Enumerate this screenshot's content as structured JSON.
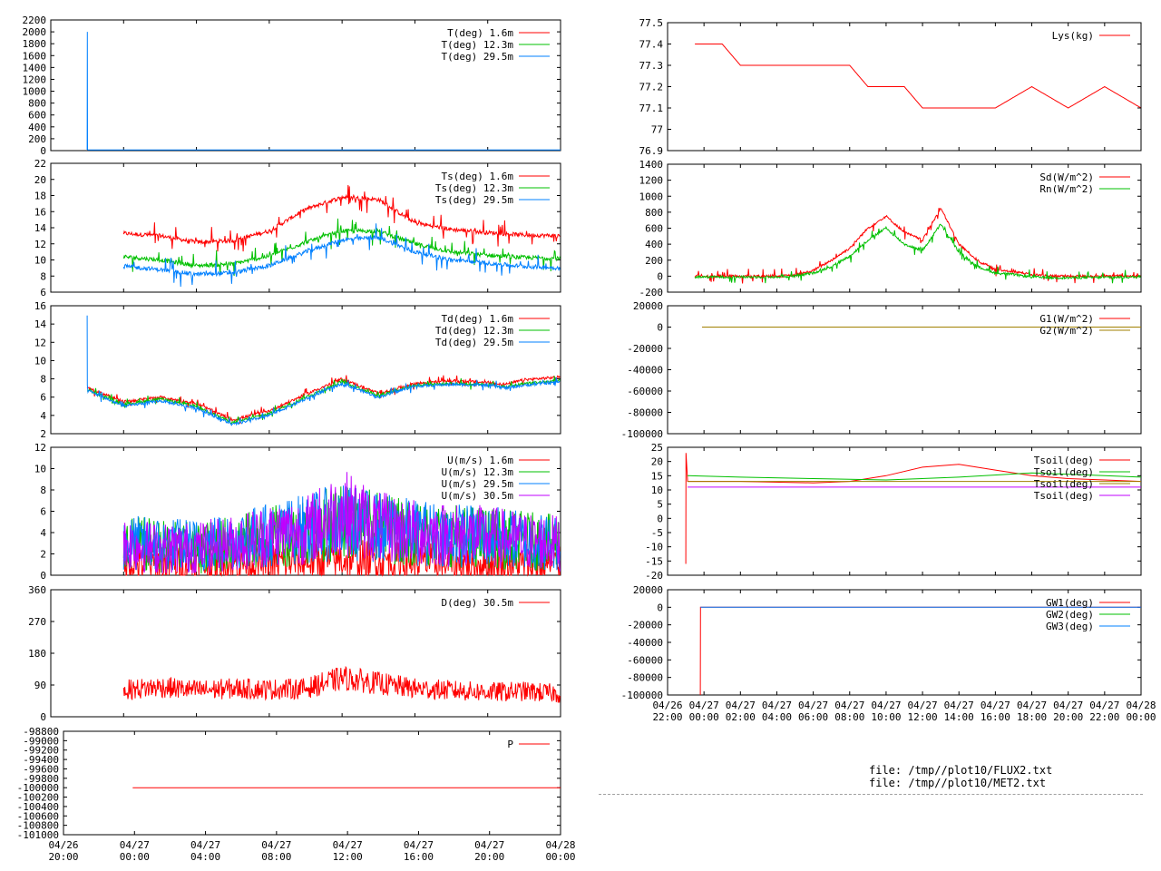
{
  "colors": {
    "red": "#ff0000",
    "green": "#00c000",
    "blue": "#0080ff",
    "purple": "#c000ff",
    "olive": "#a08000",
    "teal": "#00a0a0"
  },
  "files": [
    "file: /tmp//plot10/FLUX2.txt",
    "file: /tmp//plot10/MET2.txt"
  ],
  "left_time_ticks": {
    "dates": [
      "04/26",
      "04/27",
      "04/27",
      "04/27",
      "04/27",
      "04/27",
      "04/27",
      "04/28"
    ],
    "times": [
      "20:00",
      "00:00",
      "04:00",
      "08:00",
      "12:00",
      "16:00",
      "20:00",
      "00:00"
    ]
  },
  "right_time_ticks": {
    "dates": [
      "04/26",
      "04/27",
      "04/27",
      "04/27",
      "04/27",
      "04/27",
      "04/27",
      "04/27",
      "04/27",
      "04/27",
      "04/27",
      "04/27",
      "04/27",
      "04/28"
    ],
    "times": [
      "22:00",
      "00:00",
      "02:00",
      "04:00",
      "06:00",
      "08:00",
      "10:00",
      "12:00",
      "14:00",
      "16:00",
      "18:00",
      "20:00",
      "22:00",
      "00:00"
    ]
  },
  "chart_data": [
    {
      "id": "T",
      "type": "line",
      "col": "left",
      "xlim": [
        20,
        48
      ],
      "ylim": [
        0,
        2200
      ],
      "yticks": [
        "0",
        "200",
        "400",
        "600",
        "800",
        "1000",
        "1200",
        "1400",
        "1600",
        "1800",
        "2000",
        "2200"
      ],
      "legend": [
        "T(deg)  1.6m",
        "T(deg) 12.3m",
        "T(deg) 29.5m"
      ],
      "series": [
        {
          "name": "T(deg)  1.6m",
          "color": "red",
          "x": [],
          "y": []
        },
        {
          "name": "T(deg) 12.3m",
          "color": "green",
          "x": [],
          "y": []
        },
        {
          "name": "T(deg) 29.5m",
          "color": "blue",
          "x": [
            22.0,
            22.01,
            22.02,
            22.05,
            48
          ],
          "y": [
            15,
            2000,
            15,
            10,
            10
          ]
        }
      ]
    },
    {
      "id": "Ts",
      "type": "line",
      "col": "left",
      "xlim": [
        20,
        48
      ],
      "ylim": [
        6,
        22
      ],
      "yticks": [
        "6",
        "8",
        "10",
        "12",
        "14",
        "16",
        "18",
        "20",
        "22"
      ],
      "legend": [
        "Ts(deg)  1.6m",
        "Ts(deg) 12.3m",
        "Ts(deg) 29.5m"
      ],
      "series": [
        {
          "name": "Ts(deg)  1.6m",
          "color": "red",
          "x": [
            24,
            26,
            28,
            30,
            32,
            34,
            36,
            38,
            40,
            42,
            44,
            46,
            48
          ],
          "y": [
            13.3,
            13,
            12.2,
            12.4,
            13.6,
            16.3,
            17.8,
            17.5,
            14.6,
            13.8,
            13.4,
            13.1,
            13
          ]
        },
        {
          "name": "Ts(deg) 12.3m",
          "color": "green",
          "x": [
            24,
            26,
            28,
            30,
            32,
            34,
            36,
            38,
            40,
            42,
            44,
            46,
            48
          ],
          "y": [
            10.4,
            10,
            9.3,
            9.5,
            10.5,
            12.2,
            13.6,
            13.6,
            12,
            11,
            10.6,
            10.3,
            10.2
          ]
        },
        {
          "name": "Ts(deg) 29.5m",
          "color": "blue",
          "x": [
            24,
            26,
            28,
            30,
            32,
            34,
            36,
            38,
            40,
            42,
            44,
            46,
            48
          ],
          "y": [
            9.2,
            8.8,
            8.2,
            8.4,
            9.3,
            11,
            12.5,
            12.8,
            11,
            10,
            9.6,
            9.2,
            9
          ]
        }
      ]
    },
    {
      "id": "Td",
      "type": "line",
      "col": "left",
      "xlim": [
        20,
        48
      ],
      "ylim": [
        2,
        16
      ],
      "yticks": [
        "2",
        "4",
        "6",
        "8",
        "10",
        "12",
        "14",
        "16"
      ],
      "legend": [
        "Td(deg)  1.6m",
        "Td(deg) 12.3m",
        "Td(deg) 29.5m"
      ],
      "series": [
        {
          "name": "Td(deg)  1.6m",
          "color": "red",
          "x": [
            22,
            22.3,
            24,
            26,
            28,
            30,
            32,
            34,
            36,
            38,
            40,
            42,
            44,
            45,
            46,
            48
          ],
          "y": [
            7,
            6.8,
            5.5,
            6,
            5.3,
            3.5,
            4.5,
            6.3,
            8,
            6.4,
            7.5,
            7.8,
            7.6,
            7.4,
            7.9,
            8.2
          ]
        },
        {
          "name": "Td(deg) 12.3m",
          "color": "green",
          "x": [
            22,
            22.3,
            24,
            26,
            28,
            30,
            32,
            34,
            36,
            38,
            40,
            42,
            44,
            45,
            46,
            48
          ],
          "y": [
            6.8,
            6.6,
            5.2,
            5.8,
            5,
            3.2,
            4.2,
            6,
            7.7,
            6.2,
            7.3,
            7.5,
            7.4,
            7.1,
            7.5,
            7.8
          ]
        },
        {
          "name": "Td(deg) 29.5m",
          "color": "blue",
          "x": [
            22,
            22.01,
            22.3,
            24,
            26,
            28,
            30,
            32,
            34,
            36,
            38,
            40,
            42,
            44,
            45,
            46,
            48
          ],
          "y": [
            14.8,
            6.7,
            6.5,
            5,
            5.6,
            4.8,
            3,
            4,
            5.8,
            7.5,
            6,
            7.2,
            7.4,
            7.3,
            7,
            7.3,
            7.7
          ]
        }
      ]
    },
    {
      "id": "U",
      "type": "line",
      "col": "left",
      "xlim": [
        20,
        48
      ],
      "ylim": [
        0,
        12
      ],
      "yticks": [
        "0",
        "2",
        "4",
        "6",
        "8",
        "10",
        "12"
      ],
      "legend": [
        "U(m/s)  1.6m",
        "U(m/s) 12.3m",
        "U(m/s) 29.5m",
        "U(m/s) 30.5m"
      ],
      "series": [
        {
          "name": "U(m/s)  1.6m",
          "color": "red",
          "x": [
            24,
            28,
            32,
            36,
            40,
            44,
            48
          ],
          "y": [
            1,
            1,
            1.2,
            1.5,
            1.3,
            1,
            1
          ]
        },
        {
          "name": "U(m/s) 12.3m",
          "color": "green",
          "x": [
            24,
            28,
            32,
            36,
            40,
            44,
            48
          ],
          "y": [
            3,
            2.5,
            3.5,
            5,
            4,
            3.5,
            3
          ]
        },
        {
          "name": "U(m/s) 29.5m",
          "color": "blue",
          "x": [
            24,
            28,
            32,
            36,
            40,
            44,
            48
          ],
          "y": [
            3,
            2.8,
            3.8,
            5,
            4,
            3.6,
            3
          ]
        },
        {
          "name": "U(m/s) 30.5m",
          "color": "purple",
          "x": [
            24,
            26,
            28,
            30,
            32,
            34,
            36,
            38,
            40,
            42,
            44,
            46,
            48
          ],
          "y": [
            3,
            2.5,
            2.6,
            3,
            3.8,
            4.2,
            6,
            4.5,
            4,
            3.8,
            3.6,
            3.2,
            3
          ]
        }
      ]
    },
    {
      "id": "D",
      "type": "line",
      "col": "left",
      "xlim": [
        20,
        48
      ],
      "ylim": [
        0,
        360
      ],
      "yticks": [
        "0",
        "90",
        "180",
        "270",
        "360"
      ],
      "legend": [
        "D(deg)  30.5m"
      ],
      "series": [
        {
          "name": "D(deg)  30.5m",
          "color": "red",
          "x": [
            24,
            26,
            28,
            30,
            32,
            34,
            36,
            38,
            40,
            42,
            44,
            46,
            48
          ],
          "y": [
            75,
            85,
            75,
            80,
            78,
            80,
            110,
            95,
            80,
            75,
            70,
            72,
            65
          ]
        }
      ]
    },
    {
      "id": "P",
      "type": "line",
      "col": "left",
      "xlim": [
        20,
        48
      ],
      "ylim": [
        -101000,
        -98800
      ],
      "yticks": [
        "-101000",
        "-100800",
        "-100600",
        "-100400",
        "-100200",
        "-100000",
        "-99800",
        "-99600",
        "-99400",
        "-99200",
        "-99000",
        "-98800"
      ],
      "legend": [
        "P"
      ],
      "series": [
        {
          "name": "P",
          "color": "red",
          "x": [
            23.9,
            48
          ],
          "y": [
            -100000,
            -100000
          ]
        }
      ]
    },
    {
      "id": "Lys",
      "type": "line",
      "col": "right",
      "xlim": [
        22,
        48
      ],
      "ylim": [
        76.9,
        77.5
      ],
      "yticks": [
        "76.9",
        "77",
        "77.1",
        "77.2",
        "77.3",
        "77.4",
        "77.5"
      ],
      "legend": [
        "Lys(kg)"
      ],
      "series": [
        {
          "name": "Lys(kg)",
          "color": "red",
          "x": [
            23.5,
            25,
            26,
            28,
            30,
            31,
            32,
            33,
            34,
            35,
            36,
            38,
            40,
            42,
            44,
            46,
            48
          ],
          "y": [
            77.4,
            77.4,
            77.3,
            77.3,
            77.3,
            77.3,
            77.3,
            77.2,
            77.2,
            77.2,
            77.1,
            77.1,
            77.1,
            77.2,
            77.1,
            77.2,
            77.1
          ]
        }
      ]
    },
    {
      "id": "Sd",
      "type": "line",
      "col": "right",
      "xlim": [
        22,
        48
      ],
      "ylim": [
        -200,
        1400
      ],
      "yticks": [
        "-200",
        "0",
        "200",
        "400",
        "600",
        "800",
        "1000",
        "1200",
        "1400"
      ],
      "legend": [
        "Sd(W/m^2)",
        "Rn(W/m^2)"
      ],
      "series": [
        {
          "name": "Sd(W/m^2)",
          "color": "red",
          "x": [
            23.5,
            28,
            29,
            30,
            31,
            32,
            33,
            34,
            35,
            36,
            37,
            38,
            39,
            40,
            41,
            42,
            43,
            44,
            46,
            48
          ],
          "y": [
            0,
            0,
            10,
            70,
            200,
            350,
            600,
            750,
            550,
            450,
            850,
            400,
            200,
            80,
            60,
            20,
            5,
            0,
            0,
            0
          ]
        },
        {
          "name": "Rn(W/m^2)",
          "color": "green",
          "x": [
            23.5,
            28,
            29,
            30,
            31,
            32,
            33,
            34,
            35,
            36,
            37,
            38,
            39,
            40,
            41,
            42,
            43,
            44,
            46,
            48
          ],
          "y": [
            -10,
            -10,
            0,
            40,
            120,
            250,
            450,
            600,
            400,
            320,
            650,
            300,
            120,
            40,
            20,
            -10,
            -20,
            -20,
            -15,
            -10
          ]
        }
      ]
    },
    {
      "id": "G",
      "type": "line",
      "col": "right",
      "xlim": [
        22,
        48
      ],
      "ylim": [
        -100000,
        20000
      ],
      "yticks": [
        "-100000",
        "-80000",
        "-60000",
        "-40000",
        "-20000",
        "0",
        "20000"
      ],
      "legend": [
        "G1(W/m^2)",
        "G2(W/m^2)"
      ],
      "series": [
        {
          "name": "G1(W/m^2)",
          "color": "red",
          "x": [
            23.9,
            48
          ],
          "y": [
            0,
            0
          ]
        },
        {
          "name": "G2(W/m^2)",
          "color": "olive",
          "x": [
            23.9,
            48
          ],
          "y": [
            0,
            0
          ]
        }
      ]
    },
    {
      "id": "Tsoil",
      "type": "line",
      "col": "right",
      "xlim": [
        22,
        48
      ],
      "ylim": [
        -20,
        25
      ],
      "yticks": [
        "-20",
        "-15",
        "-10",
        "-5",
        "0",
        "5",
        "10",
        "15",
        "20",
        "25"
      ],
      "legend": [
        "Tsoil(deg)",
        "Tsoil(deg)",
        "Tsoil(deg)",
        "Tsoil(deg)"
      ],
      "series": [
        {
          "name": "Tsoil(deg)",
          "color": "red",
          "x": [
            23,
            23.01,
            23.1,
            26,
            30,
            32,
            34,
            36,
            38,
            40,
            42,
            44,
            46,
            48
          ],
          "y": [
            -16,
            23,
            13,
            13,
            12.5,
            13,
            15,
            18,
            19,
            17,
            15,
            14,
            13.5,
            13
          ]
        },
        {
          "name": "Tsoil(deg)",
          "color": "green",
          "x": [
            23.1,
            26,
            30,
            34,
            38,
            42,
            46,
            48
          ],
          "y": [
            15,
            14.5,
            14,
            13.5,
            14.5,
            16,
            15,
            14.5
          ]
        },
        {
          "name": "Tsoil(deg)",
          "color": "olive",
          "x": [
            23.1,
            48
          ],
          "y": [
            13,
            13
          ]
        },
        {
          "name": "Tsoil(deg)",
          "color": "purple",
          "x": [
            23.1,
            48
          ],
          "y": [
            11,
            11
          ]
        }
      ]
    },
    {
      "id": "GW",
      "type": "line",
      "col": "right",
      "xlim": [
        22,
        48
      ],
      "ylim": [
        -100000,
        20000
      ],
      "yticks": [
        "-100000",
        "-80000",
        "-60000",
        "-40000",
        "-20000",
        "0",
        "20000"
      ],
      "legend": [
        "GW1(deg)",
        "GW2(deg)",
        "GW3(deg)"
      ],
      "series": [
        {
          "name": "GW1(deg)",
          "color": "red",
          "x": [
            23.8,
            23.81,
            48
          ],
          "y": [
            -100000,
            0,
            0
          ]
        },
        {
          "name": "GW2(deg)",
          "color": "green",
          "x": [],
          "y": []
        },
        {
          "name": "GW3(deg)",
          "color": "blue",
          "x": [
            23.81,
            48
          ],
          "y": [
            0,
            0
          ]
        }
      ]
    }
  ]
}
